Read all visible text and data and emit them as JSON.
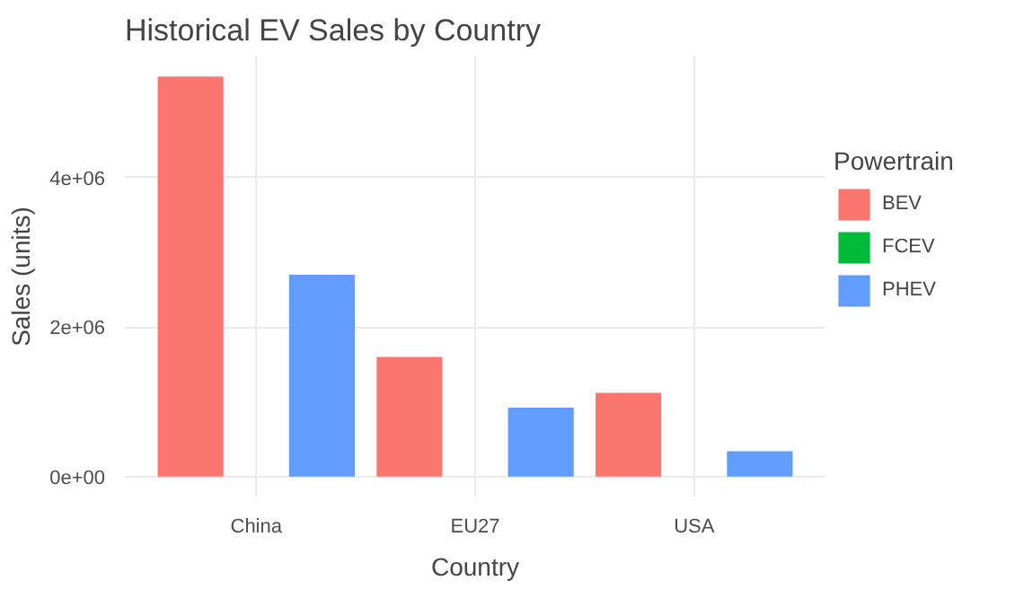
{
  "chart_data": {
    "type": "bar",
    "title": "Historical EV Sales by Country",
    "xlabel": "Country",
    "ylabel": "Sales (units)",
    "legend_title": "Powertrain",
    "categories": [
      "China",
      "EU27",
      "USA"
    ],
    "series": [
      {
        "name": "BEV",
        "color": "#f8766d",
        "values": [
          5350000,
          1600000,
          1120000
        ]
      },
      {
        "name": "FCEV",
        "color": "#00ba38",
        "values": [
          0,
          0,
          0
        ]
      },
      {
        "name": "PHEV",
        "color": "#619cff",
        "values": [
          2700000,
          920000,
          340000
        ]
      }
    ],
    "ylim": [
      -268000,
      5617000
    ],
    "yticks": [
      {
        "value": 0,
        "label": "0e+00"
      },
      {
        "value": 2000000,
        "label": "2e+06"
      },
      {
        "value": 4000000,
        "label": "4e+06"
      }
    ],
    "grid": true,
    "legend": "right"
  }
}
